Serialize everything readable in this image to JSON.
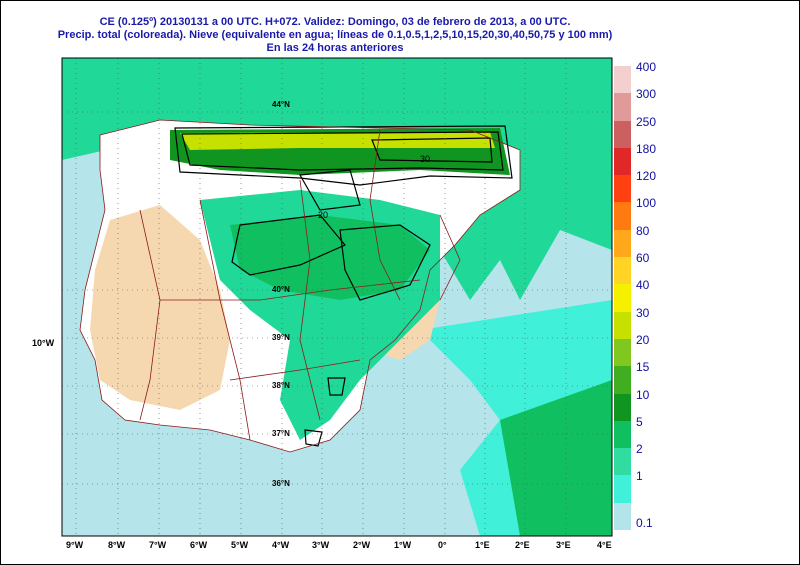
{
  "title": {
    "line1": "CE (0.125º) 20130131 a 00 UTC.  H+072. Validez: Domingo, 03 de febrero de 2013,  a  00 UTC.",
    "line2": "Precip. total (coloreada). Nieve (equivalente en agua; líneas de 0.1,0.5,1,2,5,10,15,20,30,40,50,75 y 100 mm)",
    "line3": "En las 24 horas anteriores"
  },
  "colorbar": {
    "entries": [
      {
        "label": "400",
        "color": "#f3d0cf"
      },
      {
        "label": "300",
        "color": "#e09a9a"
      },
      {
        "label": "250",
        "color": "#cc6060"
      },
      {
        "label": "180",
        "color": "#e02828"
      },
      {
        "label": "120",
        "color": "#ff4010"
      },
      {
        "label": "100",
        "color": "#ff7a10"
      },
      {
        "label": "80",
        "color": "#ffa81c"
      },
      {
        "label": "60",
        "color": "#ffd424"
      },
      {
        "label": "40",
        "color": "#f4f000"
      },
      {
        "label": "30",
        "color": "#c6e000"
      },
      {
        "label": "20",
        "color": "#80c820"
      },
      {
        "label": "15",
        "color": "#40ae20"
      },
      {
        "label": "10",
        "color": "#109620"
      },
      {
        "label": "5",
        "color": "#10c060"
      },
      {
        "label": "2",
        "color": "#30dca0"
      },
      {
        "label": "1",
        "color": "#40f0d8"
      },
      {
        "label": "0.1",
        "color": "#b2e4ea"
      }
    ]
  },
  "axes": {
    "lon_labels": [
      "9°W",
      "8°W",
      "7°W",
      "6°W",
      "5°W",
      "4°W",
      "3°W",
      "2°W",
      "1°W",
      "0°",
      "1°E",
      "2°E",
      "3°E",
      "4°E"
    ],
    "side_label": "10°W",
    "lat_labels": [
      "44°N",
      "40°N",
      "39°N",
      "38°N",
      "37°N",
      "36°N"
    ]
  },
  "map_colors": {
    "sea": "#b5e4ea",
    "land_dry": "#f6d8b0",
    "land_light": "#ffffff",
    "precip_low": "#40f0d8",
    "precip_mid": "#20d898",
    "precip_high": "#10c060",
    "precip_heavy": "#109620",
    "snow_max": "#c6e000",
    "borders": "#8b1a1a",
    "contour": "#000000"
  },
  "contour_labels": [
    "30",
    "20"
  ]
}
